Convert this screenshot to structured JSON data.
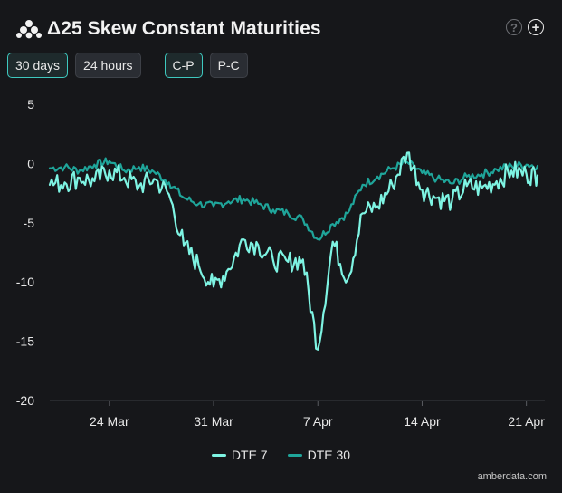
{
  "header": {
    "title": "Δ25 Skew Constant Maturities"
  },
  "controls": {
    "range_buttons": [
      "30 days",
      "24 hours"
    ],
    "mode_buttons": [
      "C-P",
      "P-C"
    ]
  },
  "brand": "amberdata.com",
  "colors": {
    "background": "#16171a",
    "dte7": "#7ef4e3",
    "dte30": "#1fa59a",
    "accent": "#3ec9bf"
  },
  "chart_data": {
    "type": "line",
    "title": "Δ25 Skew Constant Maturities",
    "xlabel": "",
    "ylabel": "",
    "x_ticks": [
      "24 Mar",
      "31 Mar",
      "7 Apr",
      "14 Apr",
      "21 Apr"
    ],
    "x_range": [
      "2025-03-20",
      "2025-04-21T18:00"
    ],
    "ylim": [
      -20,
      5
    ],
    "y_ticks": [
      5,
      0,
      -5,
      -10,
      -15,
      -20
    ],
    "legend_position": "bottom",
    "series": [
      {
        "name": "DTE 7",
        "color": "#7ef4e3",
        "points": [
          [
            "2025-03-20",
            -1.8
          ],
          [
            "2025-03-21",
            -1.6
          ],
          [
            "2025-03-22",
            -1.2
          ],
          [
            "2025-03-23",
            -1.5
          ],
          [
            "2025-03-24",
            -0.6
          ],
          [
            "2025-03-25",
            -1.2
          ],
          [
            "2025-03-26",
            -1.9
          ],
          [
            "2025-03-27",
            -1.3
          ],
          [
            "2025-03-28",
            -2.6
          ],
          [
            "2025-03-29",
            -6.9
          ],
          [
            "2025-03-30",
            -8.6
          ],
          [
            "2025-03-31",
            -10.4
          ],
          [
            "2025-04-01",
            -8.9
          ],
          [
            "2025-04-02",
            -6.4
          ],
          [
            "2025-04-03",
            -6.9
          ],
          [
            "2025-04-04",
            -8.2
          ],
          [
            "2025-04-05",
            -8.3
          ],
          [
            "2025-04-06",
            -8.1
          ],
          [
            "2025-04-07",
            -15.7
          ],
          [
            "2025-04-08",
            -6.6
          ],
          [
            "2025-04-09",
            -9.8
          ],
          [
            "2025-04-10",
            -4.2
          ],
          [
            "2025-04-11",
            -3.6
          ],
          [
            "2025-04-12",
            -1.8
          ],
          [
            "2025-04-13",
            0.9
          ],
          [
            "2025-04-14",
            -2.2
          ],
          [
            "2025-04-15",
            -2.9
          ],
          [
            "2025-04-16",
            -3.2
          ],
          [
            "2025-04-17",
            -1.9
          ],
          [
            "2025-04-18",
            -2.1
          ],
          [
            "2025-04-19",
            -1.5
          ],
          [
            "2025-04-20",
            -0.6
          ],
          [
            "2025-04-21",
            -0.9
          ],
          [
            "2025-04-21T18:00",
            -1.0
          ]
        ]
      },
      {
        "name": "DTE 30",
        "color": "#1fa59a",
        "points": [
          [
            "2025-03-20",
            -0.4
          ],
          [
            "2025-03-21",
            -0.3
          ],
          [
            "2025-03-22",
            -0.6
          ],
          [
            "2025-03-23",
            -0.1
          ],
          [
            "2025-03-24",
            0.2
          ],
          [
            "2025-03-25",
            -0.6
          ],
          [
            "2025-03-26",
            -0.3
          ],
          [
            "2025-03-27",
            -0.7
          ],
          [
            "2025-03-28",
            -1.6
          ],
          [
            "2025-03-29",
            -2.9
          ],
          [
            "2025-03-30",
            -3.4
          ],
          [
            "2025-03-31",
            -3.6
          ],
          [
            "2025-04-01",
            -3.2
          ],
          [
            "2025-04-02",
            -3.0
          ],
          [
            "2025-04-03",
            -3.4
          ],
          [
            "2025-04-04",
            -3.9
          ],
          [
            "2025-04-05",
            -4.2
          ],
          [
            "2025-04-06",
            -4.7
          ],
          [
            "2025-04-07",
            -6.4
          ],
          [
            "2025-04-08",
            -5.1
          ],
          [
            "2025-04-09",
            -4.2
          ],
          [
            "2025-04-10",
            -1.8
          ],
          [
            "2025-04-11",
            -1.1
          ],
          [
            "2025-04-12",
            -0.4
          ],
          [
            "2025-04-13",
            0.1
          ],
          [
            "2025-04-14",
            -0.8
          ],
          [
            "2025-04-15",
            -1.3
          ],
          [
            "2025-04-16",
            -1.7
          ],
          [
            "2025-04-17",
            -1.1
          ],
          [
            "2025-04-18",
            -0.9
          ],
          [
            "2025-04-19",
            -0.5
          ],
          [
            "2025-04-20",
            -0.2
          ],
          [
            "2025-04-21",
            -0.1
          ],
          [
            "2025-04-21T18:00",
            -0.2
          ]
        ]
      }
    ]
  }
}
